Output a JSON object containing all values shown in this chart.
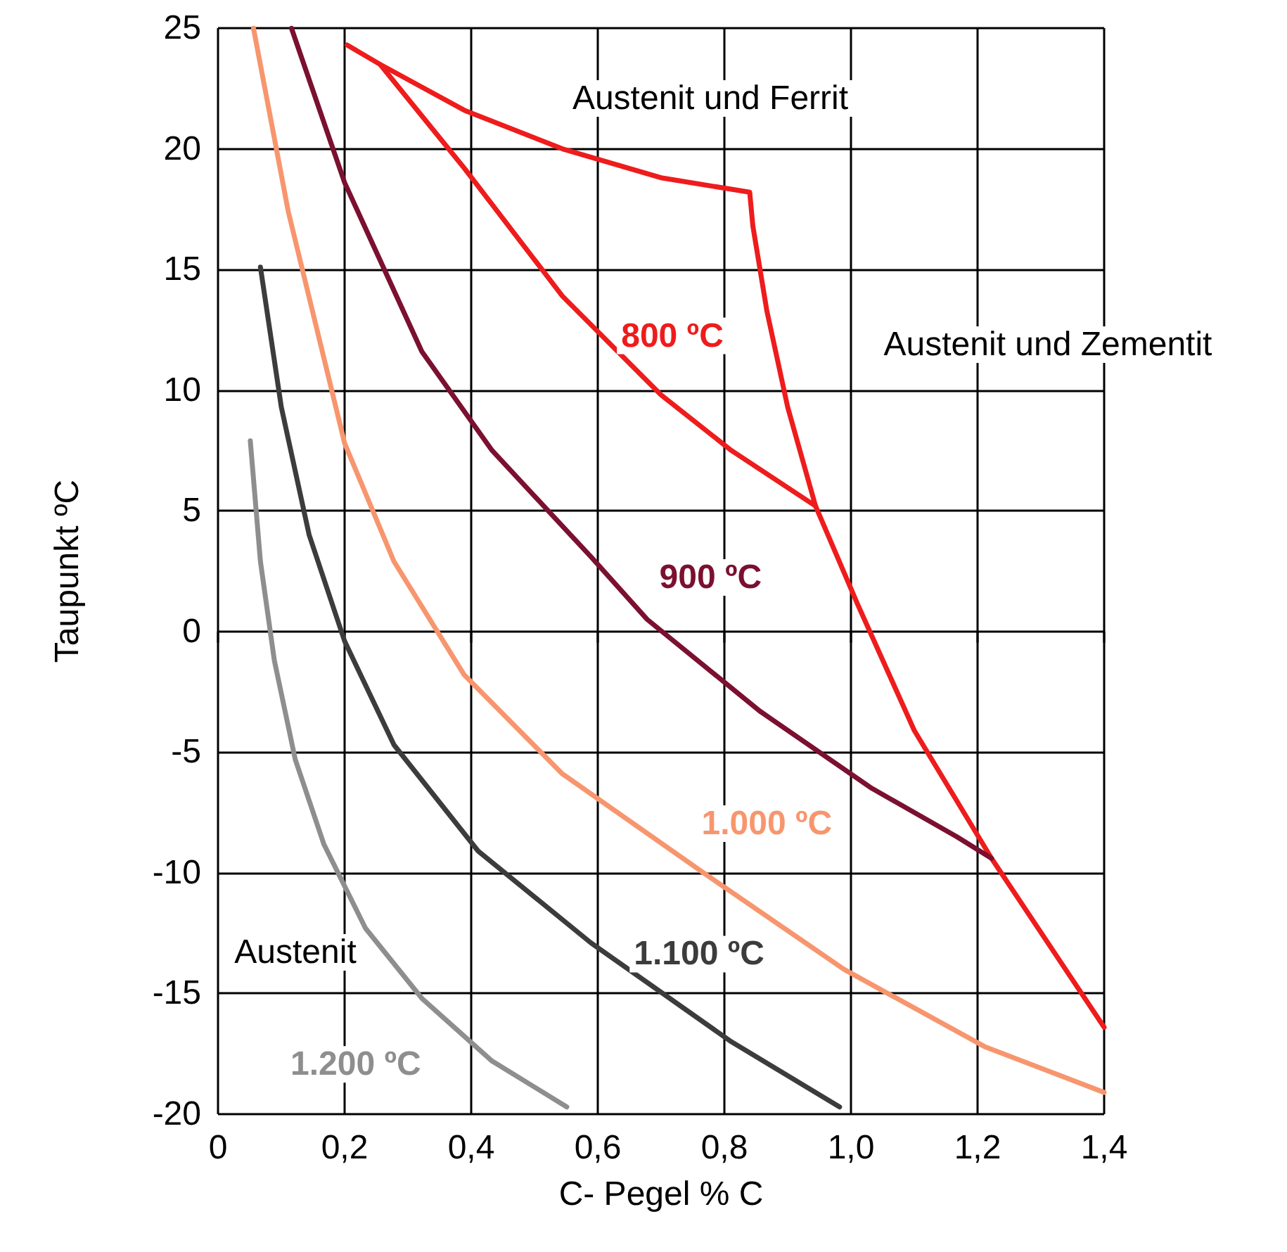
{
  "chart_data": {
    "type": "line",
    "xlabel": "C- Pegel % C",
    "ylabel": "Taupunkt ºC",
    "xlim": [
      0,
      1.4
    ],
    "ylim": [
      -20,
      25
    ],
    "xticks": [
      0,
      {
        "value": 0.2,
        "label": "0,2"
      },
      {
        "value": 0.4,
        "label": "0,4"
      },
      {
        "value": 0.6,
        "label": "0,6"
      },
      {
        "value": 0.8,
        "label": "0,8"
      },
      {
        "value": 1.0,
        "label": "1,0"
      },
      {
        "value": 1.2,
        "label": "1,2"
      },
      {
        "value": 1.4,
        "label": "1,4"
      }
    ],
    "yticks": [
      -20,
      -15,
      -10,
      -5,
      0,
      5,
      10,
      15,
      20,
      25
    ],
    "grid": true,
    "line_style": "solid",
    "series": [
      {
        "color": "#ee1c1c",
        "x": [
          0.204,
          0.256,
          0.389,
          0.544,
          0.7,
          0.84,
          0.845,
          0.867,
          0.9,
          0.944,
          1.011,
          1.1,
          1.222,
          1.4
        ],
        "values": [
          24.3,
          23.5,
          21.6,
          20.0,
          18.8,
          18.2,
          16.8,
          13.3,
          9.3,
          5.2,
          1.1,
          -4.1,
          -9.4,
          -16.4
        ]
      },
      {
        "name": "800 ºC",
        "color": "#ee1c1c",
        "x": [
          0.256,
          0.389,
          0.544,
          0.7,
          0.811,
          0.944
        ],
        "values": [
          23.5,
          19.2,
          13.9,
          9.8,
          7.5,
          5.2
        ]
      },
      {
        "name": "900 ºC",
        "color": "#7b1030",
        "x": [
          0.116,
          0.2,
          0.322,
          0.433,
          0.589,
          0.678,
          0.856,
          1.033,
          1.167,
          1.222
        ],
        "values": [
          25,
          18.6,
          11.6,
          7.5,
          3.1,
          0.5,
          -3.3,
          -6.5,
          -8.5,
          -9.4
        ]
      },
      {
        "name": "1.000 ºC",
        "color": "#f7966e",
        "x": [
          0.056,
          0.111,
          0.2,
          0.278,
          0.389,
          0.544,
          0.767,
          0.989,
          1.211,
          1.4
        ],
        "values": [
          25,
          17.4,
          7.8,
          2.9,
          -1.8,
          -5.9,
          -10.0,
          -14.0,
          -17.2,
          -19.1
        ]
      },
      {
        "name": "1.100 ºC",
        "color": "#3c3c3c",
        "x": [
          0.067,
          0.1,
          0.144,
          0.2,
          0.278,
          0.411,
          0.589,
          0.811,
          0.982
        ],
        "values": [
          15.1,
          9.3,
          4.0,
          -0.4,
          -4.7,
          -9.1,
          -12.9,
          -17.0,
          -19.7
        ]
      },
      {
        "name": "1.200 ºC",
        "color": "#8e8e8e",
        "x": [
          0.051,
          0.067,
          0.089,
          0.122,
          0.167,
          0.233,
          0.322,
          0.433,
          0.551
        ],
        "values": [
          7.9,
          2.9,
          -1.2,
          -5.3,
          -8.8,
          -12.3,
          -15.2,
          -17.8,
          -19.7
        ]
      }
    ],
    "annotations": [
      "Austenit und Ferrit",
      "Austenit und Zementit",
      "Austenit"
    ]
  }
}
